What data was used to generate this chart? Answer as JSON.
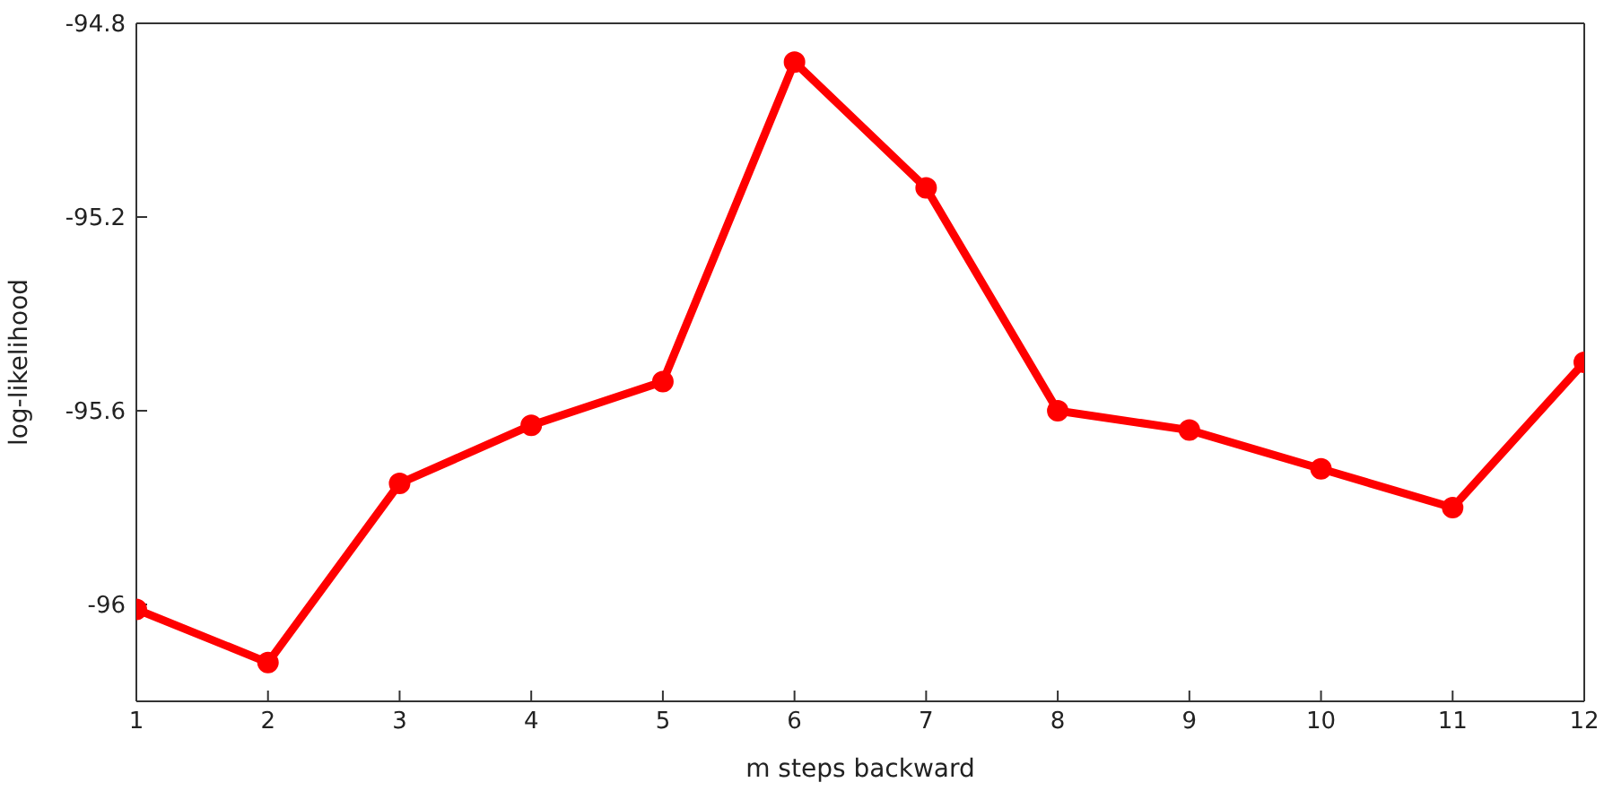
{
  "chart_data": {
    "type": "line",
    "xlabel": "m steps backward",
    "ylabel": "log-likelihood",
    "x": [
      1,
      2,
      3,
      4,
      5,
      6,
      7,
      8,
      9,
      10,
      11,
      12
    ],
    "series": [
      {
        "color": "#ff0000",
        "values": [
          -96.01,
          -96.12,
          -95.75,
          -95.63,
          -95.54,
          -94.88,
          -95.14,
          -95.6,
          -95.64,
          -95.72,
          -95.8,
          -95.5
        ]
      }
    ],
    "xlim": [
      1,
      12
    ],
    "xticks": [
      1,
      2,
      3,
      4,
      5,
      6,
      7,
      8,
      9,
      10,
      11,
      12
    ],
    "ylim": [
      -96.2,
      -94.8
    ],
    "yticks": [
      -96,
      -95.6,
      -95.2,
      -94.8
    ],
    "grid": false,
    "legend": false,
    "marker": "circle",
    "line_style": "solid"
  }
}
